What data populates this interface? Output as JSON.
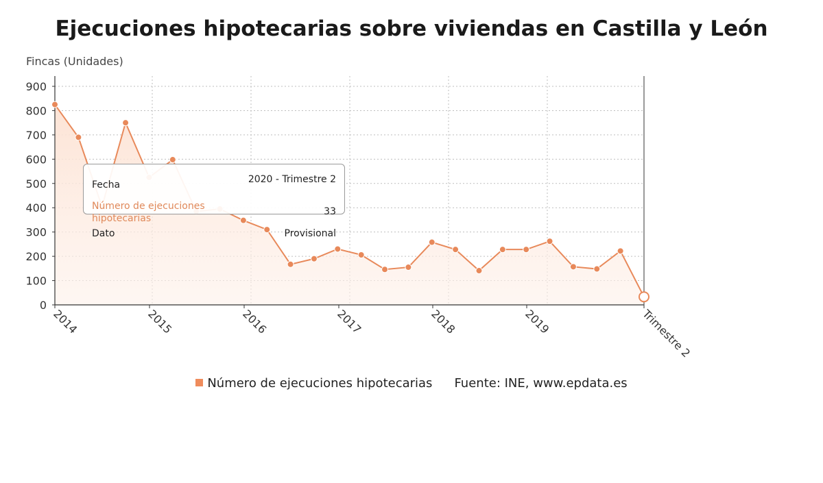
{
  "title": "Ejecuciones hipotecarias sobre viviendas en Castilla y León",
  "legend_label": "Número de ejecuciones hipotecarias",
  "source": "Fuente: INE, www.epdata.es",
  "tooltip": {
    "row1_label": "Fecha",
    "row1_value": "2020 - Trimestre 2",
    "row2_label": "Número de ejecuciones hipotecarias",
    "row2_value": "33",
    "row3_label": "Dato",
    "row3_value": "Provisional"
  },
  "colors": {
    "line": "#e8895a",
    "area": "#fde8dc",
    "legend": "#ef8c5c"
  },
  "chart_data": {
    "type": "area",
    "title": "Ejecuciones hipotecarias sobre viviendas en Castilla y León",
    "ylabel": "Fincas (Unidades)",
    "xlabel": "",
    "ylim": [
      0,
      900
    ],
    "yticks": [
      0,
      100,
      200,
      300,
      400,
      500,
      600,
      700,
      800,
      900
    ],
    "xticks": [
      "2014",
      "2015",
      "2016",
      "2017",
      "2018",
      "2019",
      "Trimestre 2"
    ],
    "grid": true,
    "legend_position": "bottom",
    "series": [
      {
        "name": "Número de ejecuciones hipotecarias",
        "x": [
          "2014-T1",
          "2014-T2",
          "2014-T3",
          "2014-T4",
          "2015-T1",
          "2015-T2",
          "2015-T3",
          "2015-T4",
          "2016-T1",
          "2016-T2",
          "2016-T3",
          "2016-T4",
          "2017-T1",
          "2017-T2",
          "2017-T3",
          "2017-T4",
          "2018-T1",
          "2018-T2",
          "2018-T3",
          "2018-T4",
          "2019-T1",
          "2019-T2",
          "2019-T3",
          "2019-T4",
          "2020-T1",
          "2020-T2"
        ],
        "values": [
          825,
          690,
          405,
          750,
          525,
          598,
          385,
          395,
          348,
          310,
          167,
          190,
          230,
          206,
          146,
          155,
          258,
          228,
          141,
          228,
          228,
          262,
          157,
          148,
          222,
          33
        ]
      }
    ]
  }
}
